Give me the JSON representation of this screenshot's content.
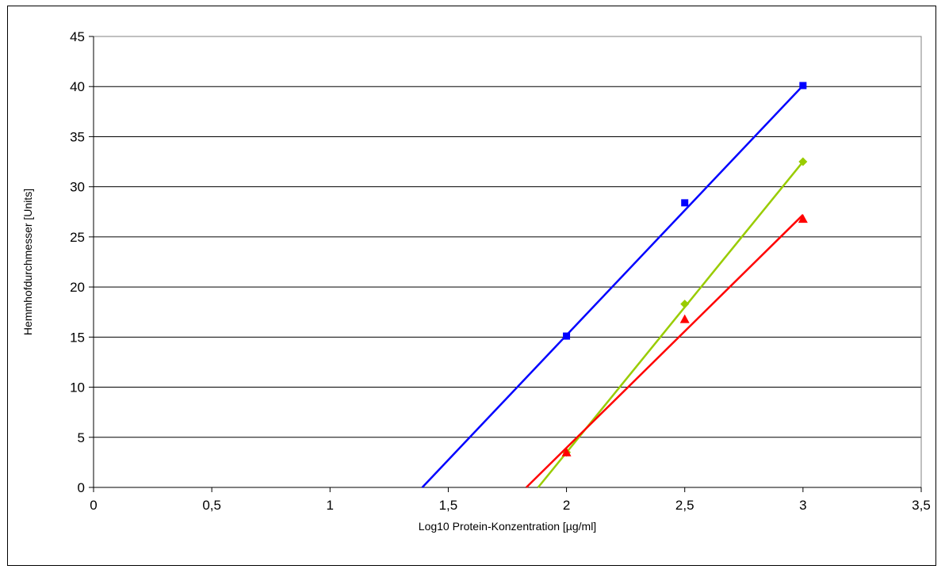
{
  "chart_data": {
    "type": "scatter",
    "title": "",
    "xlabel": "Log10 Protein-Konzentration [µg/ml]",
    "ylabel": "Hemmhofdurchmesser [Units]",
    "xlim": [
      0,
      3.5
    ],
    "ylim": [
      0,
      45
    ],
    "x_ticks": [
      0,
      0.5,
      1,
      1.5,
      2,
      2.5,
      3,
      3.5
    ],
    "x_tick_labels": [
      "0",
      "0,5",
      "1",
      "1,5",
      "2",
      "2,5",
      "3",
      "3,5"
    ],
    "y_ticks": [
      0,
      5,
      10,
      15,
      20,
      25,
      30,
      35,
      40,
      45
    ],
    "y_tick_labels": [
      "0",
      "5",
      "10",
      "15",
      "20",
      "25",
      "30",
      "35",
      "40",
      "45"
    ],
    "grid": "horizontal",
    "legend": "none",
    "series": [
      {
        "color": "#0000ff",
        "marker": "square",
        "x": [
          2,
          2.5,
          3
        ],
        "y": [
          15.1,
          28.4,
          40.1
        ],
        "trendline": {
          "x": [
            1.39,
            3.0
          ],
          "y": [
            0,
            40.1
          ]
        }
      },
      {
        "color": "#99cc00",
        "marker": "diamond",
        "x": [
          2,
          2.5,
          3
        ],
        "y": [
          3.5,
          18.3,
          32.5
        ],
        "trendline": {
          "x": [
            1.88,
            3.0
          ],
          "y": [
            0,
            32.5
          ]
        }
      },
      {
        "color": "#ff0000",
        "marker": "triangle",
        "x": [
          2,
          2.5,
          3
        ],
        "y": [
          3.5,
          16.8,
          26.8
        ],
        "trendline": {
          "x": [
            1.83,
            3.0
          ],
          "y": [
            0,
            27.2
          ]
        }
      }
    ]
  }
}
